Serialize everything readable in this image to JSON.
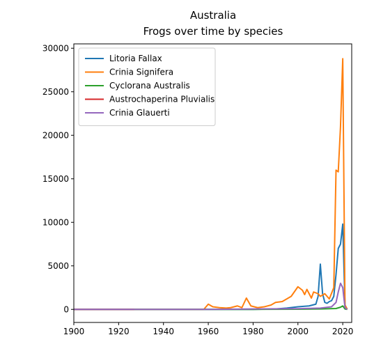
{
  "chart_data": {
    "type": "line",
    "title": "Australia",
    "subtitle": "Frogs over time by species",
    "xlabel": "",
    "ylabel": "",
    "xlim": [
      1900,
      2024
    ],
    "ylim": [
      -1500,
      30500
    ],
    "xticks": [
      "1900",
      "1920",
      "1940",
      "1960",
      "1980",
      "2000",
      "2020"
    ],
    "yticks": [
      "0",
      "5000",
      "10000",
      "15000",
      "20000",
      "25000",
      "30000"
    ],
    "grid": false,
    "legend_position": "top-left",
    "series": [
      {
        "name": "Litoria Fallax",
        "color": "#1f77b4",
        "points": [
          [
            1900,
            0
          ],
          [
            1920,
            0
          ],
          [
            1940,
            0
          ],
          [
            1960,
            0
          ],
          [
            1980,
            0
          ],
          [
            1990,
            50
          ],
          [
            1995,
            150
          ],
          [
            2000,
            300
          ],
          [
            2005,
            400
          ],
          [
            2008,
            600
          ],
          [
            2009,
            1500
          ],
          [
            2010,
            5200
          ],
          [
            2011,
            1800
          ],
          [
            2012,
            800
          ],
          [
            2013,
            700
          ],
          [
            2014,
            900
          ],
          [
            2015,
            1000
          ],
          [
            2016,
            1500
          ],
          [
            2017,
            4000
          ],
          [
            2018,
            7000
          ],
          [
            2019,
            7500
          ],
          [
            2020,
            9800
          ],
          [
            2021,
            500
          ],
          [
            2022,
            0
          ]
        ]
      },
      {
        "name": "Crinia Signifera",
        "color": "#ff7f0e",
        "points": [
          [
            1900,
            0
          ],
          [
            1958,
            0
          ],
          [
            1960,
            600
          ],
          [
            1962,
            300
          ],
          [
            1965,
            200
          ],
          [
            1968,
            150
          ],
          [
            1970,
            200
          ],
          [
            1973,
            400
          ],
          [
            1975,
            200
          ],
          [
            1977,
            1300
          ],
          [
            1979,
            400
          ],
          [
            1982,
            200
          ],
          [
            1985,
            300
          ],
          [
            1988,
            500
          ],
          [
            1990,
            800
          ],
          [
            1993,
            900
          ],
          [
            1995,
            1200
          ],
          [
            1997,
            1500
          ],
          [
            2000,
            2600
          ],
          [
            2002,
            2200
          ],
          [
            2003,
            1700
          ],
          [
            2004,
            2300
          ],
          [
            2006,
            1300
          ],
          [
            2007,
            2000
          ],
          [
            2009,
            1800
          ],
          [
            2010,
            1500
          ],
          [
            2012,
            1800
          ],
          [
            2014,
            1200
          ],
          [
            2016,
            2500
          ],
          [
            2017,
            16000
          ],
          [
            2018,
            15800
          ],
          [
            2019,
            21000
          ],
          [
            2020,
            28800
          ],
          [
            2021,
            500
          ],
          [
            2022,
            0
          ]
        ]
      },
      {
        "name": "Cyclorana Australis",
        "color": "#2ca02c",
        "points": [
          [
            1900,
            0
          ],
          [
            1980,
            0
          ],
          [
            2000,
            20
          ],
          [
            2010,
            50
          ],
          [
            2017,
            100
          ],
          [
            2019,
            250
          ],
          [
            2020,
            400
          ],
          [
            2021,
            50
          ],
          [
            2022,
            0
          ]
        ]
      },
      {
        "name": "Austrochaperina Pluvialis",
        "color": "#d62728",
        "points": [
          [
            1900,
            0
          ],
          [
            1927,
            0
          ]
        ]
      },
      {
        "name": "Crinia Glauerti",
        "color": "#9467bd",
        "points": [
          [
            1900,
            0
          ],
          [
            1960,
            0
          ],
          [
            1980,
            50
          ],
          [
            2000,
            80
          ],
          [
            2010,
            150
          ],
          [
            2015,
            300
          ],
          [
            2017,
            800
          ],
          [
            2018,
            2000
          ],
          [
            2019,
            3000
          ],
          [
            2020,
            2500
          ],
          [
            2021,
            200
          ],
          [
            2022,
            0
          ]
        ]
      }
    ]
  }
}
